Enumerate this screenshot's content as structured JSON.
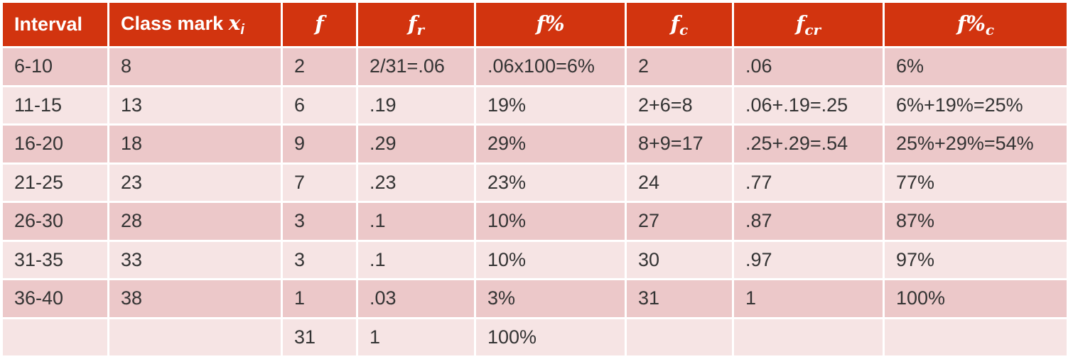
{
  "columns": [
    {
      "text": "Interval"
    },
    {
      "text": "Class mark ",
      "symbol": "x",
      "sub": "i"
    },
    {
      "symbol": "f",
      "sub": ""
    },
    {
      "symbol": "f",
      "sub": "r"
    },
    {
      "symbol": "f%",
      "sub": ""
    },
    {
      "symbol": "f",
      "sub": "c"
    },
    {
      "symbol": "f",
      "sub": "cr"
    },
    {
      "symbol": "f%",
      "sub": "c"
    }
  ],
  "rows": [
    [
      "6-10",
      "8",
      "2",
      "2/31=.06",
      ".06x100=6%",
      "2",
      ".06",
      "6%"
    ],
    [
      "11-15",
      "13",
      "6",
      ".19",
      "19%",
      "2+6=8",
      ".06+.19=.25",
      "6%+19%=25%"
    ],
    [
      "16-20",
      "18",
      "9",
      ".29",
      "29%",
      "8+9=17",
      ".25+.29=.54",
      "25%+29%=54%"
    ],
    [
      "21-25",
      "23",
      "7",
      ".23",
      "23%",
      "24",
      ".77",
      "77%"
    ],
    [
      "26-30",
      "28",
      "3",
      ".1",
      "10%",
      "27",
      ".87",
      "87%"
    ],
    [
      "31-35",
      "33",
      "3",
      ".1",
      "10%",
      "30",
      ".97",
      "97%"
    ],
    [
      "36-40",
      "38",
      "1",
      ".03",
      "3%",
      "31",
      "1",
      "100%"
    ],
    [
      "",
      "",
      "31",
      "1",
      "100%",
      "",
      "",
      ""
    ]
  ],
  "colors": {
    "header_bg": "#d2340f",
    "row_dark": "#ecc8c9",
    "row_light": "#f6e4e4"
  }
}
